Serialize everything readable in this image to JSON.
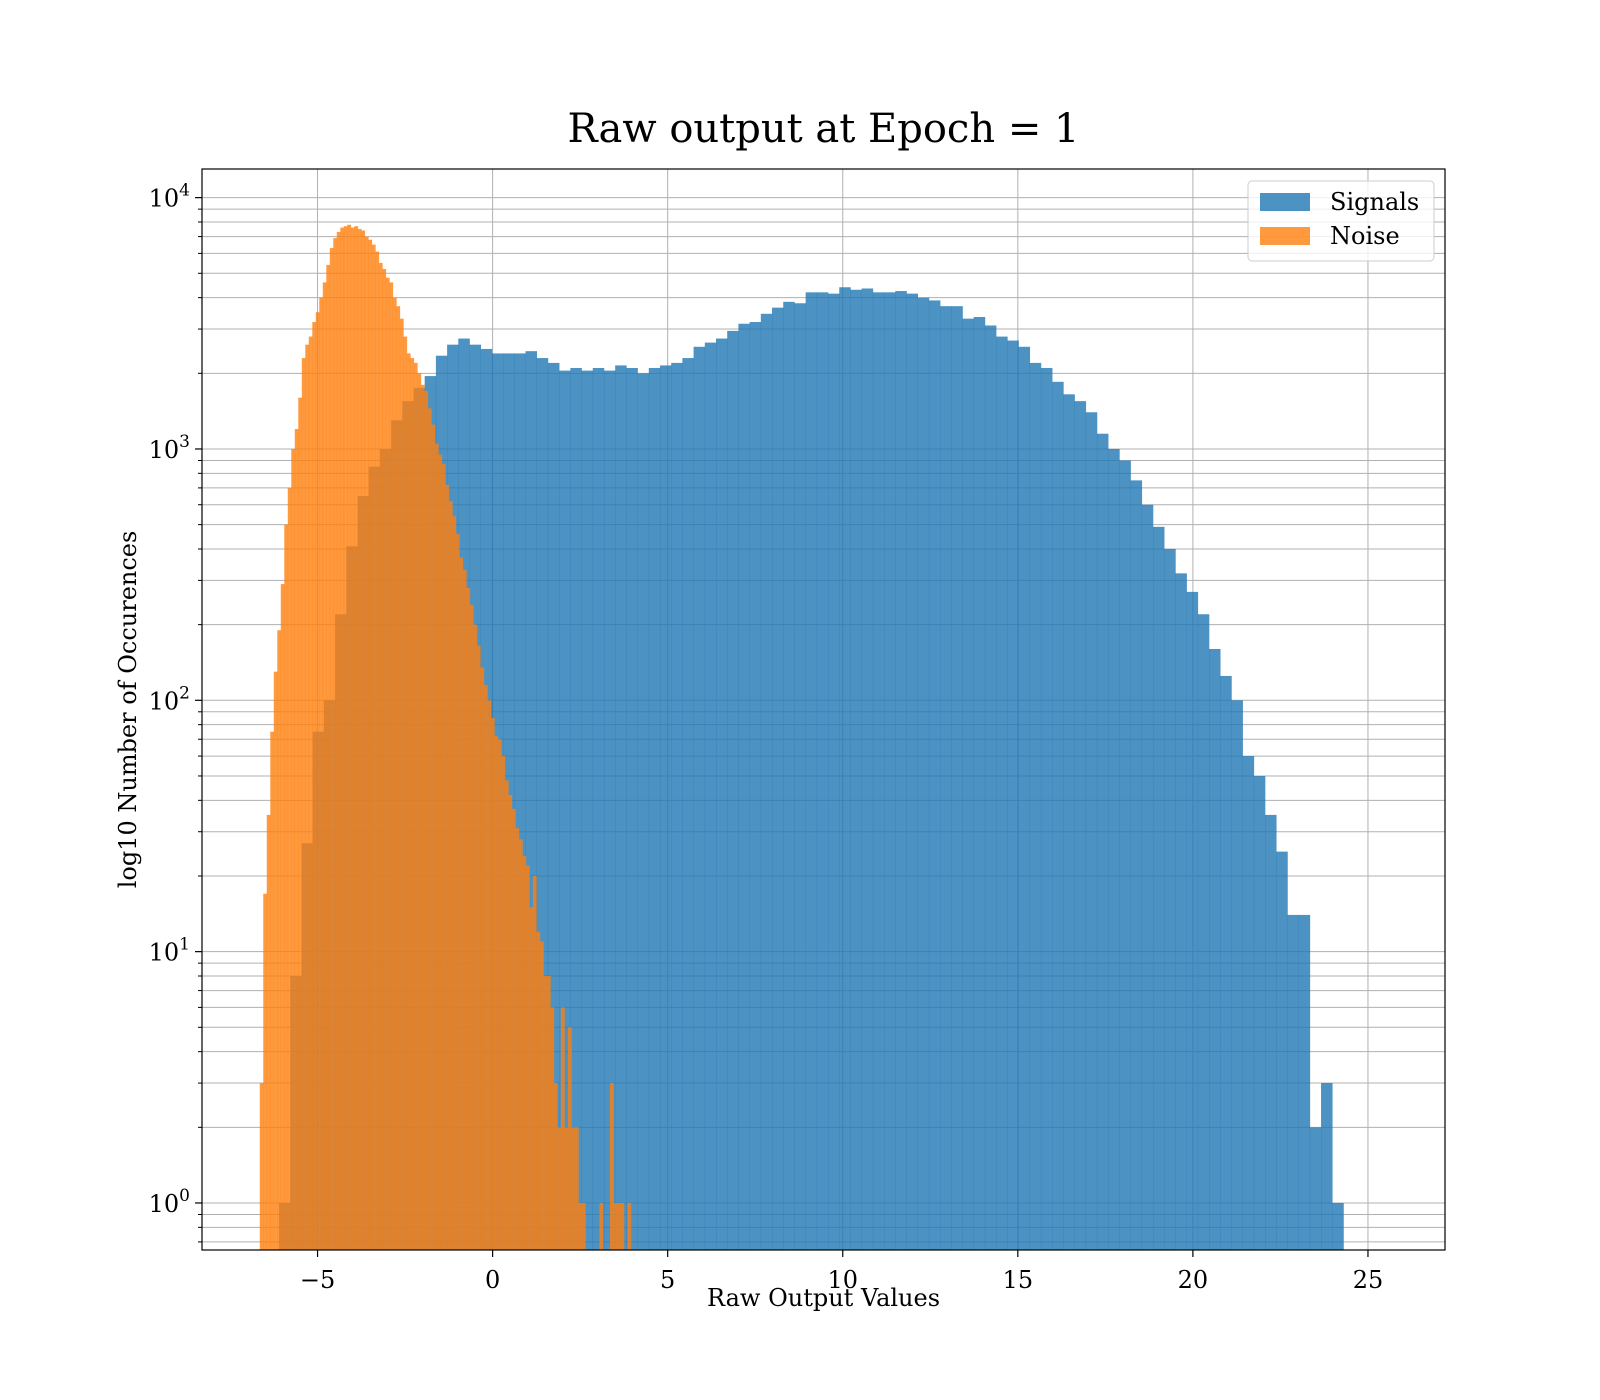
{
  "chart_data": {
    "type": "histogram",
    "title": "Raw output at Epoch = 1",
    "xlabel": "Raw Output Values",
    "ylabel": "log10 Number of Occurences",
    "xlim": [
      -8.3,
      27.2
    ],
    "ylim": [
      0.65,
      13000
    ],
    "yscale": "log",
    "x_ticks": [
      -5,
      0,
      5,
      10,
      15,
      20,
      25
    ],
    "x_tick_labels": [
      "−5",
      "0",
      "5",
      "10",
      "15",
      "20",
      "25"
    ],
    "y_tick_exponents": [
      "0",
      "1",
      "2",
      "3",
      "4"
    ],
    "grid": true,
    "legend_position": "upper right",
    "series": [
      {
        "name": "Signals",
        "color": "#1f77b4",
        "alpha": 0.8,
        "bin_start": -6.1,
        "bin_width": 0.32,
        "counts": [
          1,
          8,
          27,
          75,
          100,
          220,
          410,
          650,
          850,
          1000,
          1300,
          1550,
          1750,
          1950,
          2350,
          2600,
          2750,
          2600,
          2500,
          2400,
          2400,
          2400,
          2450,
          2300,
          2200,
          2050,
          2100,
          2050,
          2100,
          2050,
          2150,
          2100,
          2000,
          2100,
          2150,
          2200,
          2300,
          2550,
          2650,
          2750,
          2950,
          3150,
          3200,
          3450,
          3650,
          3850,
          3800,
          4200,
          4200,
          4150,
          4400,
          4300,
          4350,
          4200,
          4200,
          4250,
          4150,
          4000,
          3900,
          3700,
          3700,
          3300,
          3350,
          3100,
          2800,
          2700,
          2550,
          2200,
          2100,
          1850,
          1650,
          1550,
          1400,
          1150,
          1000,
          900,
          750,
          600,
          490,
          400,
          320,
          270,
          220,
          160,
          125,
          100,
          60,
          50,
          35,
          25,
          14,
          14,
          2,
          3,
          1
        ]
      },
      {
        "name": "Noise",
        "color": "#ff7f0e",
        "alpha": 0.8,
        "bin_start": -6.65,
        "bin_width": 0.1,
        "counts": [
          3,
          17,
          35,
          75,
          130,
          190,
          290,
          500,
          700,
          1000,
          1200,
          1600,
          2300,
          2600,
          2800,
          3200,
          3500,
          4000,
          4600,
          5400,
          6300,
          6900,
          7300,
          7600,
          7700,
          7800,
          7600,
          7700,
          7500,
          7400,
          7000,
          6800,
          6500,
          6100,
          5500,
          5200,
          4800,
          4600,
          4000,
          3700,
          3300,
          2800,
          2400,
          2300,
          2200,
          2000,
          1800,
          1700,
          1450,
          1250,
          1050,
          950,
          870,
          720,
          620,
          540,
          460,
          370,
          330,
          280,
          240,
          200,
          165,
          135,
          115,
          100,
          85,
          72,
          70,
          60,
          48,
          42,
          37,
          31,
          28,
          24,
          22,
          15,
          20,
          12,
          11,
          8,
          8,
          6,
          3,
          2,
          6,
          2,
          5,
          2,
          2,
          1,
          1,
          0,
          0,
          0,
          0,
          1,
          0,
          0,
          3,
          1,
          1,
          1,
          0,
          1
        ]
      }
    ]
  }
}
